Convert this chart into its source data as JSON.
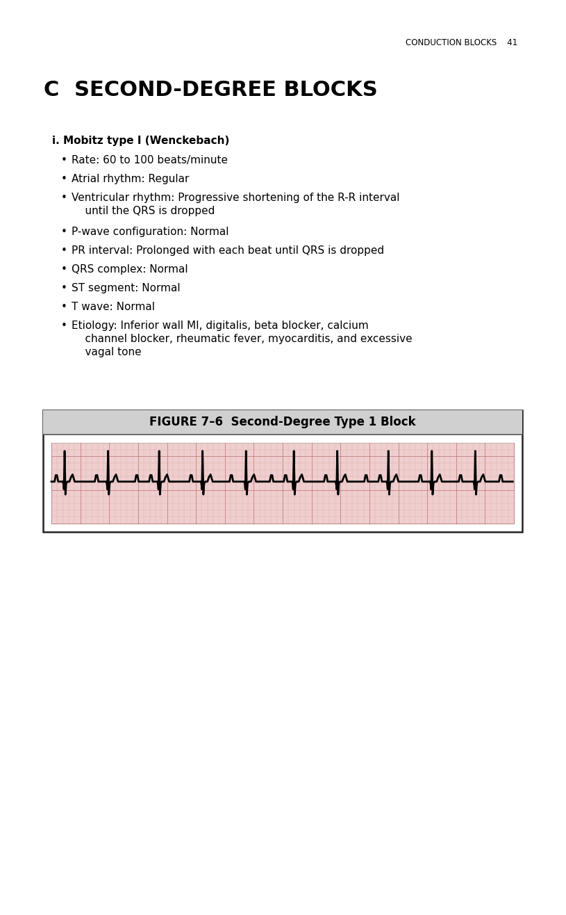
{
  "header_right": "CONDUCTION BLOCKS    41",
  "section_letter": "C",
  "section_title": "SECOND-DEGREE BLOCKS",
  "subsection": "i. Mobitz type I (Wenckebach)",
  "bullet_texts": [
    [
      "Rate: 60 to 100 beats/minute",
      1
    ],
    [
      "Atrial rhythm: Regular",
      1
    ],
    [
      "Ventricular rhythm: Progressive shortening of the R-R interval\n    until the QRS is dropped",
      2
    ],
    [
      "P-wave configuration: Normal",
      1
    ],
    [
      "PR interval: Prolonged with each beat until QRS is dropped",
      1
    ],
    [
      "QRS complex: Normal",
      1
    ],
    [
      "ST segment: Normal",
      1
    ],
    [
      "T wave: Normal",
      1
    ],
    [
      "Etiology: Inferior wall MI, digitalis, beta blocker, calcium\n    channel blocker, rheumatic fever, myocarditis, and excessive\n    vagal tone",
      3
    ]
  ],
  "figure_title": "FIGURE 7–6  Second-Degree Type 1 Block",
  "bg_color": "#ffffff",
  "text_color": "#000000",
  "grid_minor_color": "#daa0a0",
  "grid_major_color": "#c07070",
  "ekg_line_color": "#000000",
  "figure_title_bg": "#d0d0d0",
  "ekg_bg_color": "#eecece"
}
